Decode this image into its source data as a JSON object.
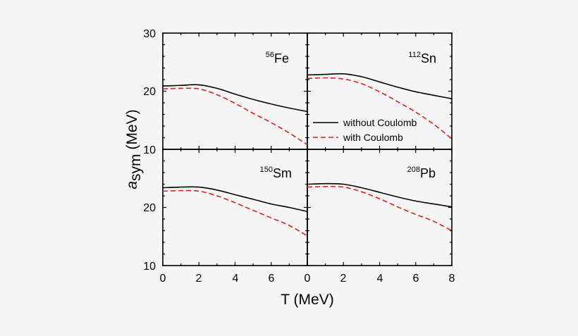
{
  "chart_data": {
    "type": "line",
    "layout": "2x2 grid, shared axes",
    "xlabel": "T (MeV)",
    "ylabel_main": "a",
    "ylabel_sub": "sym",
    "ylabel_unit": "(MeV)",
    "xlim": [
      0,
      8
    ],
    "ylim": [
      10,
      30
    ],
    "x_ticks": [
      "0",
      "2",
      "4",
      "6",
      "8"
    ],
    "y_ticks_top": [
      "30",
      "20",
      "10"
    ],
    "y_ticks_bottom": [
      "20",
      "10"
    ],
    "legend": {
      "placement": "top-right panel, lower part",
      "entries": [
        {
          "label": "without Coulomb",
          "color": "#000000",
          "style": "solid"
        },
        {
          "label": "with Coulomb",
          "color": "#e0201a",
          "style": "dashed"
        }
      ]
    },
    "x": [
      0,
      1,
      2,
      3,
      4,
      5,
      6,
      7,
      8
    ],
    "panels": [
      {
        "id": "fe56",
        "mass_number": "56",
        "element": "Fe",
        "series": [
          {
            "name": "without Coulomb",
            "values": [
              20.9,
              21.0,
              21.1,
              20.5,
              19.5,
              18.6,
              17.8,
              17.1,
              16.5
            ]
          },
          {
            "name": "with Coulomb",
            "values": [
              20.4,
              20.5,
              20.4,
              19.4,
              17.9,
              16.2,
              14.6,
              12.8,
              10.8
            ]
          }
        ]
      },
      {
        "id": "sn112",
        "mass_number": "112",
        "element": "Sn",
        "series": [
          {
            "name": "without Coulomb",
            "values": [
              22.8,
              22.9,
              23.0,
              22.5,
              21.6,
              20.7,
              19.9,
              19.3,
              18.7
            ]
          },
          {
            "name": "with Coulomb",
            "values": [
              22.2,
              22.3,
              22.1,
              21.3,
              19.9,
              18.2,
              16.4,
              14.3,
              11.8
            ]
          }
        ]
      },
      {
        "id": "sm150",
        "mass_number": "150",
        "element": "Sm",
        "series": [
          {
            "name": "without Coulomb",
            "values": [
              23.4,
              23.5,
              23.5,
              23.0,
              22.2,
              21.4,
              20.6,
              20.0,
              19.3
            ]
          },
          {
            "name": "with Coulomb",
            "values": [
              22.8,
              22.9,
              22.8,
              22.0,
              20.8,
              19.5,
              18.2,
              16.9,
              15.1
            ]
          }
        ]
      },
      {
        "id": "pb208",
        "mass_number": "208",
        "element": "Pb",
        "series": [
          {
            "name": "without Coulomb",
            "values": [
              24.0,
              24.1,
              24.0,
              23.4,
              22.6,
              21.8,
              21.1,
              20.6,
              20.1
            ]
          },
          {
            "name": "with Coulomb",
            "values": [
              23.5,
              23.6,
              23.5,
              22.7,
              21.5,
              20.1,
              18.8,
              17.6,
              16.0
            ]
          }
        ]
      }
    ]
  }
}
